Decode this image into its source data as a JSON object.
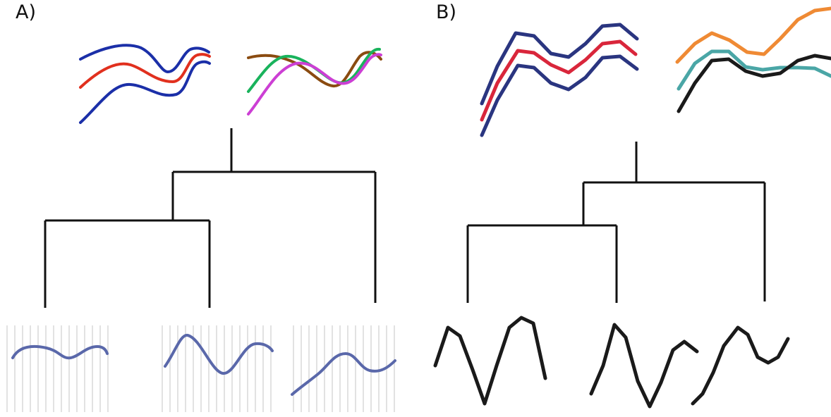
{
  "panels": {
    "a": {
      "label": "A)"
    },
    "b": {
      "label": "B)"
    }
  },
  "colors": {
    "tree": "#111111",
    "band_outer_a": "#1b2fa8",
    "band_center_a": "#e1301e",
    "band_outer_b": "#2a3580",
    "band_center_b": "#d9263b",
    "curve_green": "#19b35c",
    "curve_magenta": "#cc3fd4",
    "curve_brown": "#8a4b10",
    "curve_orange": "#ef8a34",
    "curve_teal": "#4aa6a6",
    "curve_black": "#1a1a1a",
    "leaf_curve_a": "#5a68aa",
    "grid_lines": "#e2e2e2",
    "leaf_b": "#1a1a1a"
  },
  "icons": {
    "a": [
      "smooth-band-icon",
      "smooth-crossing-curves-icon",
      "smooth-leaf-curve-icon"
    ],
    "b": [
      "jagged-band-icon",
      "jagged-mixed-curves-icon",
      "jagged-leaf-curve-icon"
    ]
  }
}
